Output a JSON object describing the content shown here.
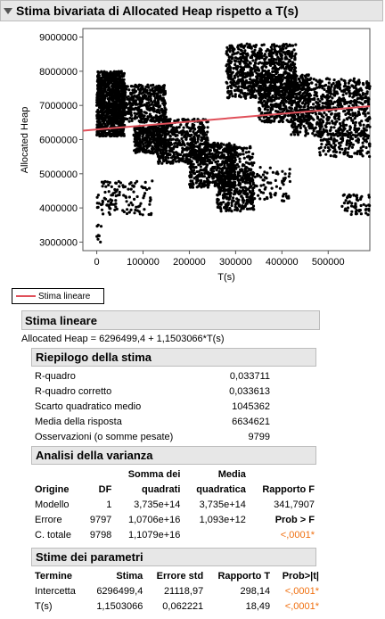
{
  "header": {
    "title": "Stima bivariata di Allocated Heap rispetto a T(s)"
  },
  "chart_data": {
    "type": "scatter",
    "ylabel": "Allocated Heap",
    "xlabel": "T(s)",
    "xlim": [
      -30000,
      590000
    ],
    "ylim": [
      2750000,
      9250000
    ],
    "x_ticks": [
      "0",
      "100000",
      "200000",
      "300000",
      "400000",
      "500000"
    ],
    "x_tick_values": [
      0,
      100000,
      200000,
      300000,
      400000,
      500000
    ],
    "y_ticks": [
      "3000000",
      "4000000",
      "5000000",
      "6000000",
      "7000000",
      "8000000",
      "9000000"
    ],
    "y_tick_values": [
      3000000,
      4000000,
      5000000,
      6000000,
      7000000,
      8000000,
      9000000
    ],
    "grid": false,
    "fit_line": {
      "intercept": 6296499.4,
      "slope": 1.1503066,
      "color": "#e0505a"
    },
    "point_color": "#000000",
    "clusters": [
      {
        "x": [
          0,
          60000
        ],
        "y": [
          6100000,
          8000000
        ],
        "n": 900
      },
      {
        "x": [
          30000,
          150000
        ],
        "y": [
          6500000,
          7600000
        ],
        "n": 500
      },
      {
        "x": [
          80000,
          150000
        ],
        "y": [
          5600000,
          6400000
        ],
        "n": 300
      },
      {
        "x": [
          130000,
          240000
        ],
        "y": [
          5300000,
          6600000
        ],
        "n": 500
      },
      {
        "x": [
          200000,
          300000
        ],
        "y": [
          4600000,
          5900000
        ],
        "n": 500
      },
      {
        "x": [
          260000,
          340000
        ],
        "y": [
          3900000,
          5000000
        ],
        "n": 300
      },
      {
        "x": [
          280000,
          340000
        ],
        "y": [
          4800000,
          5800000
        ],
        "n": 150
      },
      {
        "x": [
          280000,
          430000
        ],
        "y": [
          7200000,
          8800000
        ],
        "n": 800
      },
      {
        "x": [
          350000,
          460000
        ],
        "y": [
          6500000,
          7900000
        ],
        "n": 500
      },
      {
        "x": [
          420000,
          590000
        ],
        "y": [
          6100000,
          7800000
        ],
        "n": 700
      },
      {
        "x": [
          480000,
          590000
        ],
        "y": [
          5500000,
          6200000
        ],
        "n": 150
      },
      {
        "x": [
          0,
          120000
        ],
        "y": [
          3800000,
          4800000
        ],
        "n": 120
      },
      {
        "x": [
          530000,
          590000
        ],
        "y": [
          3800000,
          4400000
        ],
        "n": 60
      },
      {
        "x": [
          320000,
          420000
        ],
        "y": [
          4200000,
          5200000
        ],
        "n": 80
      },
      {
        "x": [
          0,
          10000
        ],
        "y": [
          2800000,
          3700000
        ],
        "n": 8
      }
    ]
  },
  "legend": {
    "label": "Stima lineare"
  },
  "fit": {
    "title": "Stima lineare",
    "equation": "Allocated Heap = 6296499,4 + 1,1503066*T(s)"
  },
  "summary": {
    "title": "Riepilogo della stima",
    "rows": [
      {
        "label": "R-quadro",
        "value": "0,033711"
      },
      {
        "label": "R-quadro corretto",
        "value": "0,033613"
      },
      {
        "label": "Scarto quadratico medio",
        "value": "1045362"
      },
      {
        "label": "Media della risposta",
        "value": "6634621"
      },
      {
        "label": "Osservazioni (o somme pesate)",
        "value": "9799"
      }
    ]
  },
  "anova": {
    "title": "Analisi della varianza",
    "headers": {
      "origin": "Origine",
      "df": "DF",
      "ss_top": "Somma dei",
      "ss_bottom": "quadrati",
      "ms_top": "Media",
      "ms_bottom": "quadratica",
      "f": "Rapporto F"
    },
    "rows": [
      {
        "origin": "Modello",
        "df": "1",
        "ss": "3,735e+14",
        "ms": "3,735e+14",
        "f": "341,7907"
      },
      {
        "origin": "Errore",
        "df": "9797",
        "ss": "1,0706e+16",
        "ms": "1,093e+12",
        "f": "Prob > F"
      },
      {
        "origin": "C. totale",
        "df": "9798",
        "ss": "1,1079e+16",
        "ms": "",
        "f": "<,0001*"
      }
    ]
  },
  "params": {
    "title": "Stime dei parametri",
    "headers": {
      "term": "Termine",
      "est": "Stima",
      "se": "Errore std",
      "t": "Rapporto T",
      "p": "Prob>|t|"
    },
    "rows": [
      {
        "term": "Intercetta",
        "est": "6296499,4",
        "se": "21118,97",
        "t": "298,14",
        "p": "<,0001*"
      },
      {
        "term": "T(s)",
        "est": "1,1503066",
        "se": "0,062221",
        "t": "18,49",
        "p": "<,0001*"
      }
    ]
  }
}
